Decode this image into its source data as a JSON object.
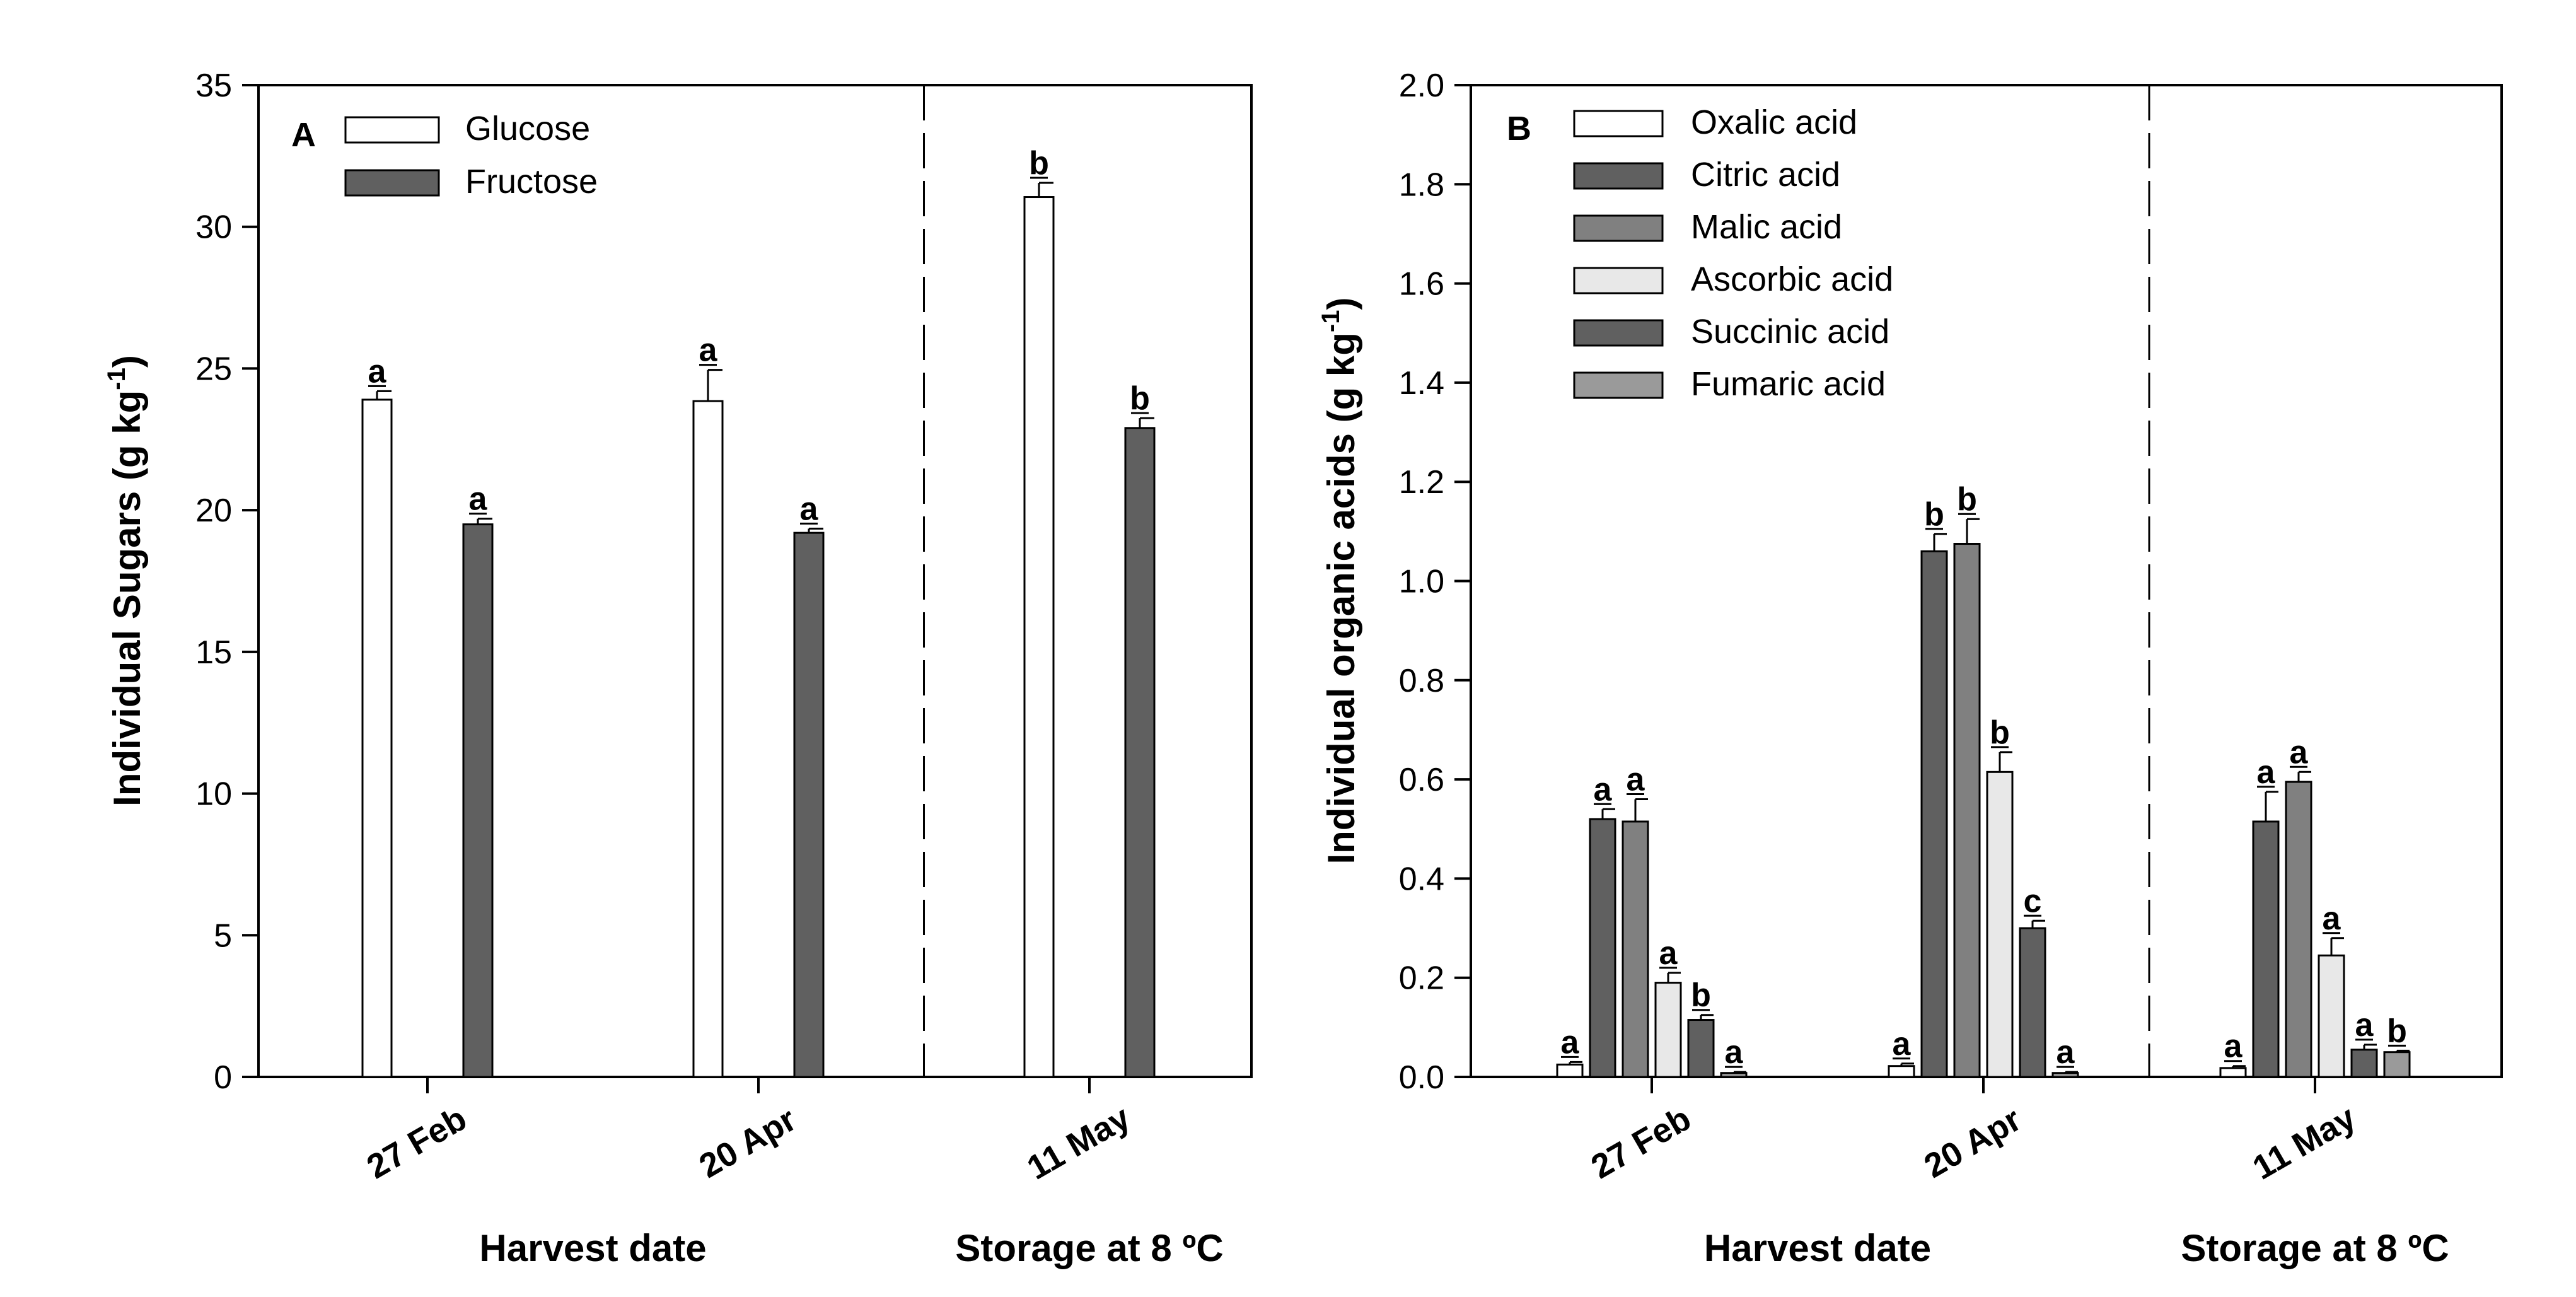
{
  "chart_data": [
    {
      "type": "bar",
      "panel": "A",
      "ylabel": "Individual Sugars (g kg",
      "ylabel_sup": "-1",
      "ylabel_close": ")",
      "ylim": [
        0,
        35
      ],
      "yticks": [
        "0",
        "5",
        "10",
        "15",
        "20",
        "25",
        "30",
        "35"
      ],
      "categories": [
        "27 Feb",
        "20 Apr",
        "11 May"
      ],
      "divider_after_category": 1,
      "footers": [
        {
          "text": "Harvest date",
          "span": [
            0,
            1
          ]
        },
        {
          "text": "Storage at 8 ºC",
          "span": [
            2,
            2
          ]
        }
      ],
      "legend_position": "top-left",
      "series": [
        {
          "name": "Glucose",
          "color": "#ffffff",
          "values": [
            23.9,
            23.85,
            31.05
          ],
          "errors": [
            0.3,
            1.1,
            0.5
          ],
          "letters": [
            "a",
            "a",
            "b"
          ]
        },
        {
          "name": "Fructose",
          "color": "#606060",
          "values": [
            19.5,
            19.2,
            22.9
          ],
          "errors": [
            0.2,
            0.15,
            0.35
          ],
          "letters": [
            "a",
            "a",
            "b"
          ]
        }
      ]
    },
    {
      "type": "bar",
      "panel": "B",
      "ylabel": "Individual organic acids (g kg",
      "ylabel_sup": "-1",
      "ylabel_close": ")",
      "ylim": [
        0,
        2.0
      ],
      "yticks": [
        "0.0",
        "0.2",
        "0.4",
        "0.6",
        "0.8",
        "1.0",
        "1.2",
        "1.4",
        "1.6",
        "1.8",
        "2.0"
      ],
      "categories": [
        "27 Feb",
        "20 Apr",
        "11 May"
      ],
      "divider_after_category": 1,
      "footers": [
        {
          "text": "Harvest date",
          "span": [
            0,
            1
          ]
        },
        {
          "text": "Storage at 8 ºC",
          "span": [
            2,
            2
          ]
        }
      ],
      "legend_position": "top-left",
      "series": [
        {
          "name": "Oxalic acid",
          "color": "#ffffff",
          "values": [
            0.025,
            0.022,
            0.018
          ],
          "errors": [
            0.005,
            0.005,
            0.004
          ],
          "letters": [
            "a",
            "a",
            "a"
          ]
        },
        {
          "name": "Citric acid",
          "color": "#606060",
          "values": [
            0.52,
            1.06,
            0.515
          ],
          "errors": [
            0.02,
            0.035,
            0.06
          ],
          "letters": [
            "a",
            "b",
            "a"
          ]
        },
        {
          "name": "Malic acid",
          "color": "#808080",
          "values": [
            0.515,
            1.075,
            0.595
          ],
          "errors": [
            0.045,
            0.05,
            0.02
          ],
          "letters": [
            "a",
            "b",
            "a"
          ]
        },
        {
          "name": "Ascorbic acid",
          "color": "#e8e8e8",
          "values": [
            0.19,
            0.615,
            0.245
          ],
          "errors": [
            0.02,
            0.04,
            0.035
          ],
          "letters": [
            "a",
            "b",
            "a"
          ]
        },
        {
          "name": "Succinic acid",
          "color": "#606060",
          "values": [
            0.115,
            0.3,
            0.055
          ],
          "errors": [
            0.01,
            0.015,
            0.01
          ],
          "letters": [
            "b",
            "c",
            "a"
          ]
        },
        {
          "name": "Fumaric acid",
          "color": "#9a9a9a",
          "values": [
            0.008,
            0.008,
            0.05
          ],
          "errors": [
            0.002,
            0.002,
            0.003
          ],
          "letters": [
            "a",
            "a",
            "b"
          ]
        }
      ]
    }
  ]
}
